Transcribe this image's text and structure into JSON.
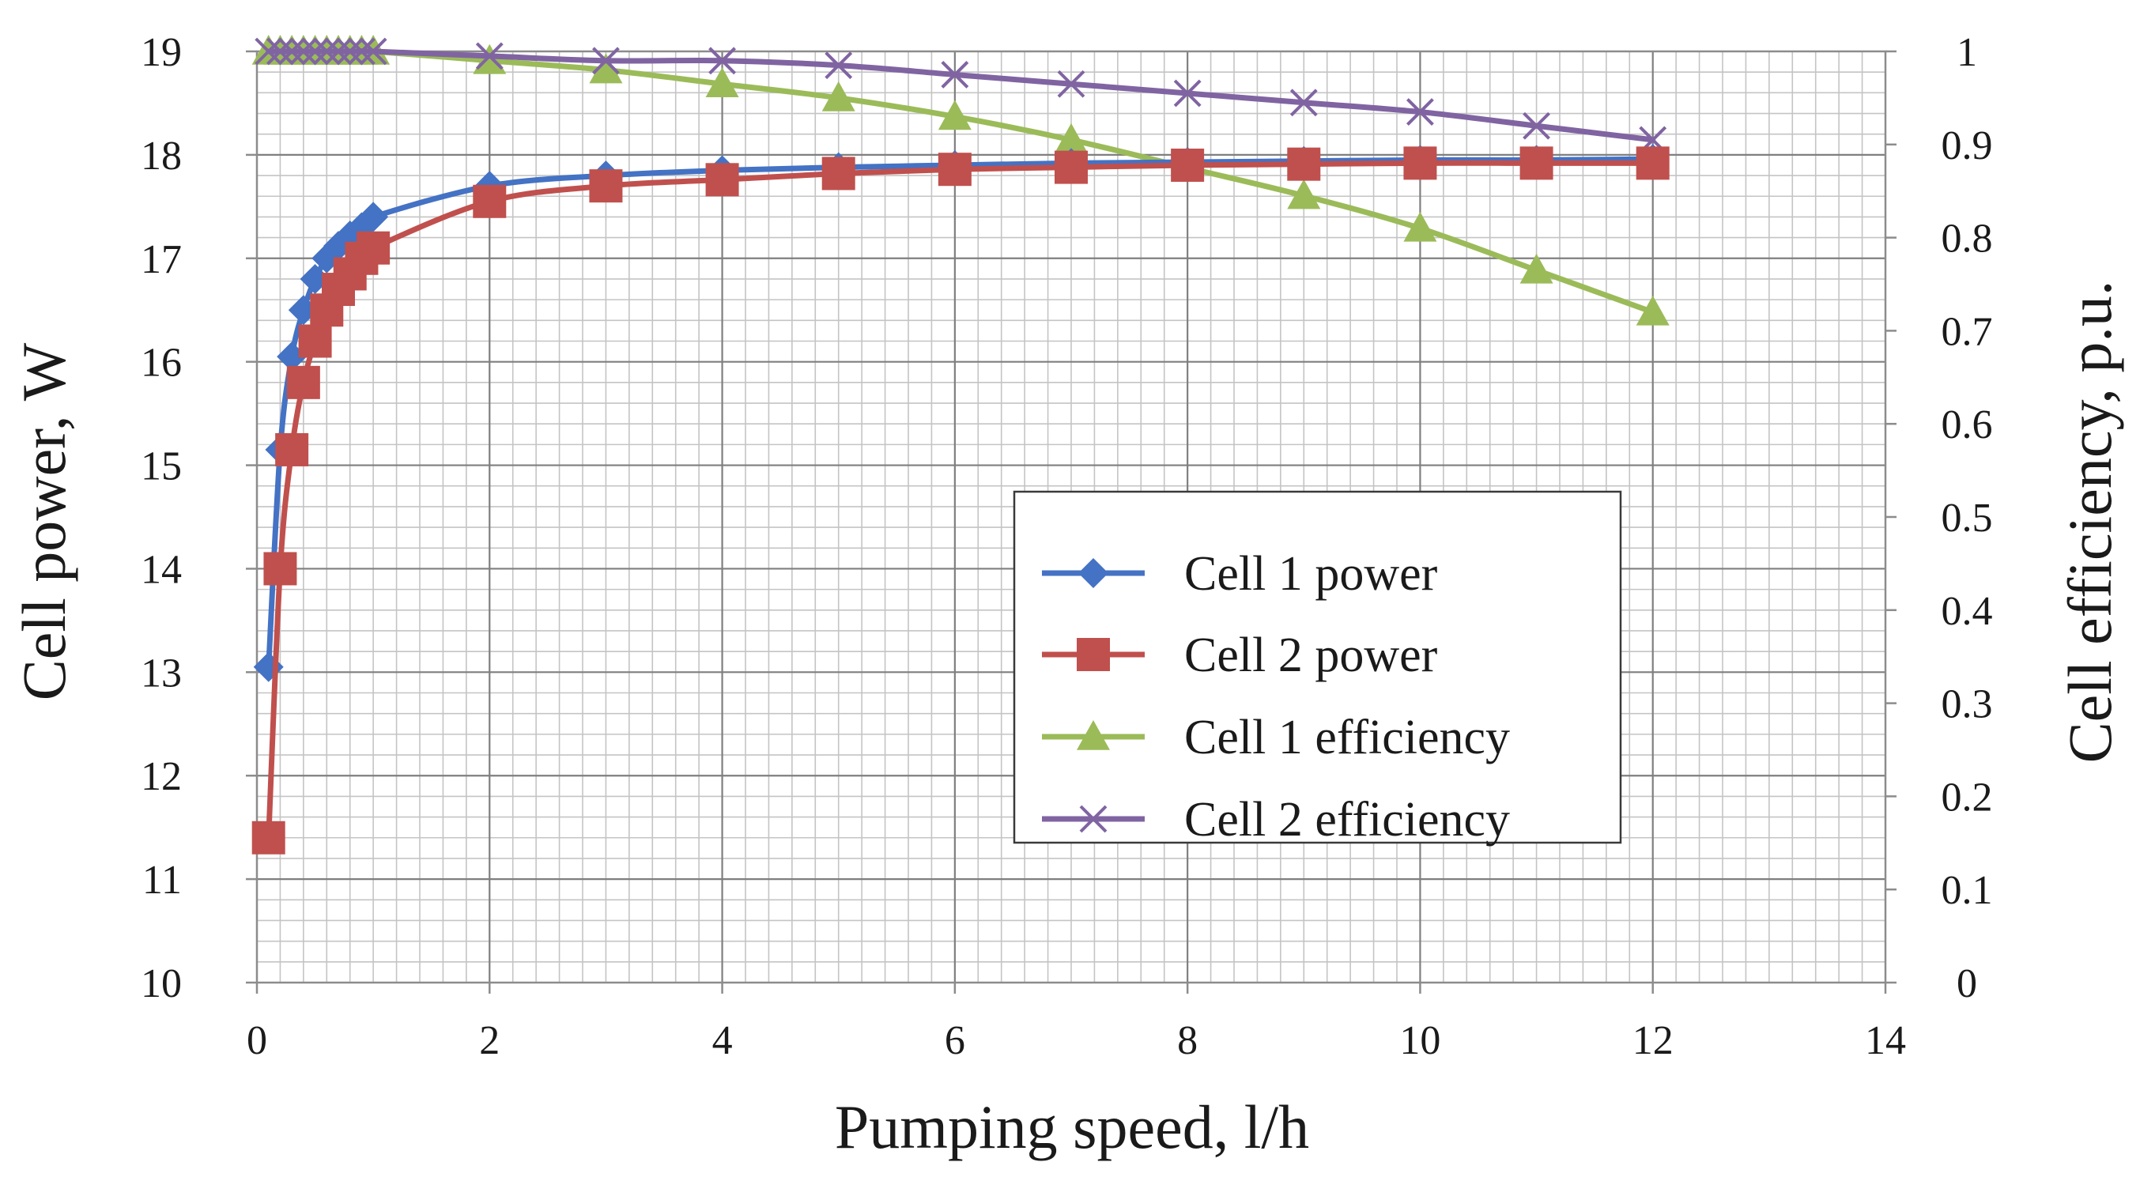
{
  "chart_data": {
    "type": "line",
    "xlabel": "Pumping speed, l/h",
    "ylabel_left": "Cell power, W",
    "ylabel_right": "Cell efficiency, p.u.",
    "xlim": [
      0,
      14
    ],
    "ylim_left": [
      10,
      19
    ],
    "ylim_right": [
      0,
      1
    ],
    "x_ticks": [
      "0",
      "2",
      "4",
      "6",
      "8",
      "10",
      "12",
      "14"
    ],
    "y_left_ticks": [
      "10",
      "11",
      "12",
      "13",
      "14",
      "15",
      "16",
      "17",
      "18",
      "19"
    ],
    "y_right_ticks": [
      "0",
      "0.1",
      "0.2",
      "0.3",
      "0.4",
      "0.5",
      "0.6",
      "0.7",
      "0.8",
      "0.9",
      "1"
    ],
    "grid": true,
    "legend_position": "center-right",
    "series": [
      {
        "name": "Cell 1 power",
        "axis": "left",
        "color": "#4472C4",
        "marker": "diamond",
        "x": [
          0.1,
          0.2,
          0.3,
          0.4,
          0.5,
          0.6,
          0.7,
          0.8,
          0.9,
          1,
          2,
          3,
          4,
          5,
          6,
          7,
          8,
          9,
          10,
          11,
          12
        ],
        "values": [
          13.05,
          15.15,
          16.05,
          16.5,
          16.8,
          17.0,
          17.12,
          17.22,
          17.3,
          17.4,
          17.7,
          17.8,
          17.85,
          17.88,
          17.9,
          17.92,
          17.93,
          17.94,
          17.95,
          17.95,
          17.96
        ]
      },
      {
        "name": "Cell 2 power",
        "axis": "left",
        "color": "#C0504D",
        "marker": "square",
        "x": [
          0.1,
          0.2,
          0.3,
          0.4,
          0.5,
          0.6,
          0.7,
          0.8,
          0.9,
          1,
          2,
          3,
          4,
          5,
          6,
          7,
          8,
          9,
          10,
          11,
          12
        ],
        "values": [
          11.4,
          14.0,
          15.15,
          15.8,
          16.2,
          16.5,
          16.7,
          16.85,
          17.0,
          17.1,
          17.55,
          17.7,
          17.76,
          17.82,
          17.86,
          17.88,
          17.9,
          17.91,
          17.92,
          17.92,
          17.92
        ]
      },
      {
        "name": "Cell 1 efficiency",
        "axis": "right",
        "color": "#9BBB59",
        "marker": "triangle",
        "x": [
          0.1,
          0.2,
          0.3,
          0.4,
          0.5,
          0.6,
          0.7,
          0.8,
          0.9,
          1,
          2,
          3,
          4,
          5,
          6,
          7,
          8,
          9,
          10,
          11,
          12
        ],
        "values": [
          1.0,
          1.0,
          1.0,
          1.0,
          1.0,
          1.0,
          1.0,
          1.0,
          1.0,
          1.0,
          0.99,
          0.98,
          0.965,
          0.95,
          0.93,
          0.905,
          0.875,
          0.845,
          0.81,
          0.765,
          0.72
        ]
      },
      {
        "name": "Cell 2 efficiency",
        "axis": "right",
        "color": "#8064A2",
        "marker": "x",
        "x": [
          0.1,
          0.2,
          0.3,
          0.4,
          0.5,
          0.6,
          0.7,
          0.8,
          0.9,
          1,
          2,
          3,
          4,
          5,
          6,
          7,
          8,
          9,
          10,
          11,
          12
        ],
        "values": [
          1.0,
          1.0,
          1.0,
          1.0,
          1.0,
          1.0,
          1.0,
          1.0,
          1.0,
          1.0,
          0.995,
          0.99,
          0.99,
          0.985,
          0.975,
          0.965,
          0.955,
          0.945,
          0.935,
          0.92,
          0.905
        ]
      }
    ]
  }
}
